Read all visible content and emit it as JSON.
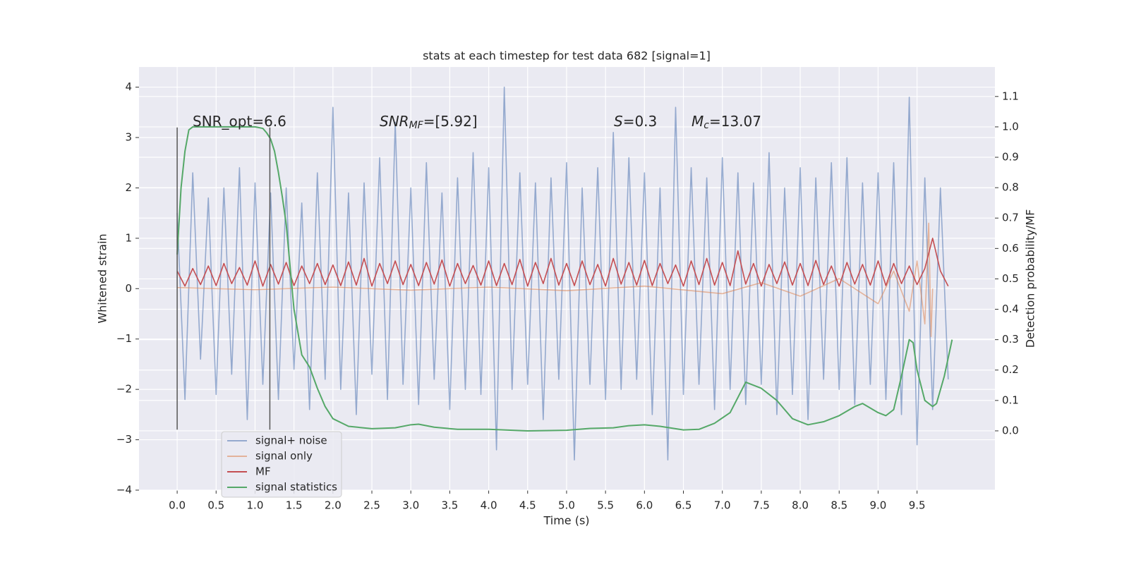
{
  "chart_data": {
    "type": "line",
    "title": "stats at each timestep for test data 682 [signal=1]",
    "xlabel": "Time (s)",
    "ylabel": "Whitened strain",
    "y2label": "Detection probability/MF",
    "xlim": [
      -0.49,
      10.5
    ],
    "ylim": [
      -4,
      4.4
    ],
    "y2lim": [
      -0.195,
      1.197
    ],
    "xticks": [
      {
        "value": 0,
        "label": "0.0"
      },
      0.5,
      {
        "value": 1,
        "label": "1.0"
      },
      1.5,
      {
        "value": 2,
        "label": "2.0"
      },
      2.5,
      {
        "value": 3,
        "label": "3.0"
      },
      3.5,
      {
        "value": 4,
        "label": "4.0"
      },
      4.5,
      {
        "value": 5,
        "label": "5.0"
      },
      5.5,
      {
        "value": 6,
        "label": "6.0"
      },
      6.5,
      {
        "value": 7,
        "label": "7.0"
      },
      7.5,
      {
        "value": 8,
        "label": "8.0"
      },
      8.5,
      {
        "value": 9,
        "label": "9.0"
      },
      9.5
    ],
    "yticks": [
      {
        "value": -4,
        "label": "−4"
      },
      {
        "value": -3,
        "label": "−3"
      },
      {
        "value": -2,
        "label": "−2"
      },
      {
        "value": -1,
        "label": "−1"
      },
      0,
      1,
      2,
      3,
      4
    ],
    "y2ticks": [
      {
        "value": 0,
        "label": "0.0"
      },
      0.1,
      0.2,
      0.3,
      0.4,
      0.5,
      0.6,
      0.7,
      0.8,
      0.9,
      {
        "value": 1,
        "label": "1.0"
      },
      1.1
    ],
    "grid": true,
    "legend": "lower left",
    "annotations": [
      [
        {
          "text": "SNR_opt=6.6"
        }
      ],
      [
        {
          "text": "SNR",
          "italic": true
        },
        {
          "text": "MF",
          "italic": true,
          "sub": true
        },
        {
          "text": "=[5.92]"
        }
      ],
      [
        {
          "text": "S",
          "italic": true
        },
        {
          "text": "=0.3"
        }
      ],
      [
        {
          "text": "M",
          "italic": true
        },
        {
          "text": "c",
          "italic": true,
          "sub": true
        },
        {
          "text": "=13.07"
        }
      ]
    ],
    "vlines": {
      "x": [
        0,
        1.19
      ],
      "ymin": -2.8,
      "ymax": 3.2,
      "color": "#555555"
    },
    "x": [
      0,
      0.1,
      0.2,
      0.3,
      0.4,
      0.5,
      0.6,
      0.7,
      0.8,
      0.9,
      1,
      1.1,
      1.2,
      1.3,
      1.4,
      1.5,
      1.6,
      1.7,
      1.8,
      1.9,
      2,
      2.1,
      2.2,
      2.3,
      2.4,
      2.5,
      2.6,
      2.7,
      2.8,
      2.9,
      3,
      3.1,
      3.2,
      3.3,
      3.4,
      3.5,
      3.6,
      3.7,
      3.8,
      3.9,
      4,
      4.1,
      4.2,
      4.3,
      4.4,
      4.5,
      4.6,
      4.7,
      4.8,
      4.9,
      5,
      5.1,
      5.2,
      5.3,
      5.4,
      5.5,
      5.6,
      5.7,
      5.8,
      5.9,
      6,
      6.1,
      6.2,
      6.3,
      6.4,
      6.5,
      6.6,
      6.7,
      6.8,
      6.9,
      7,
      7.1,
      7.2,
      7.3,
      7.4,
      7.5,
      7.6,
      7.7,
      7.8,
      7.9,
      8,
      8.1,
      8.2,
      8.3,
      8.4,
      8.5,
      8.6,
      8.7,
      8.8,
      8.9,
      9,
      9.1,
      9.2,
      9.3,
      9.4,
      9.5,
      9.6,
      9.7,
      9.8,
      9.9
    ],
    "series": [
      {
        "name": "signal+ noise",
        "color": "#4c72b0",
        "alpha": 0.55,
        "values": [
          1.5,
          -2.2,
          2.3,
          -1.4,
          1.8,
          -2.1,
          2.0,
          -1.7,
          2.4,
          -2.6,
          2.1,
          -1.9,
          1.9,
          -2.2,
          2.0,
          -1.6,
          1.7,
          -2.4,
          2.3,
          -1.8,
          3.6,
          -2.0,
          1.9,
          -2.5,
          2.1,
          -1.7,
          2.6,
          -2.2,
          3.3,
          -1.9,
          2.0,
          -2.3,
          2.5,
          -1.8,
          1.9,
          -2.4,
          2.2,
          -2.0,
          2.7,
          -2.1,
          2.4,
          -3.2,
          4.0,
          -2.0,
          2.3,
          -1.9,
          2.1,
          -2.6,
          2.2,
          -1.8,
          2.5,
          -3.4,
          2.0,
          -1.9,
          2.4,
          -2.2,
          3.1,
          -2.0,
          2.6,
          -1.8,
          2.3,
          -2.5,
          2.0,
          -3.4,
          3.6,
          -2.1,
          2.4,
          -1.9,
          2.2,
          -2.4,
          2.6,
          -2.0,
          2.3,
          -2.3,
          2.1,
          -1.9,
          2.7,
          -2.5,
          2.0,
          -2.1,
          2.4,
          -2.6,
          2.2,
          -1.8,
          2.5,
          -2.0,
          2.6,
          -2.3,
          2.1,
          -1.9,
          2.3,
          -2.2,
          2.5,
          -2.5,
          3.8,
          -3.1,
          2.2,
          -2.4,
          2.0,
          -1.8
        ]
      },
      {
        "name": "signal only",
        "color": "#dd8452",
        "alpha": 0.55,
        "x": [
          0,
          1,
          2,
          3,
          4,
          5,
          6,
          7,
          7.5,
          8,
          8.5,
          9,
          9.2,
          9.4,
          9.5,
          9.6,
          9.65,
          9.68,
          9.7
        ],
        "values": [
          0.02,
          -0.02,
          0.03,
          -0.03,
          0.03,
          -0.04,
          0.05,
          -0.1,
          0.12,
          -0.15,
          0.2,
          -0.3,
          0.35,
          -0.45,
          0.55,
          -0.7,
          1.3,
          -0.95,
          0.0
        ]
      },
      {
        "name": "MF",
        "color": "#c44e52",
        "alpha": 1,
        "values": [
          0.35,
          0.05,
          0.4,
          0.08,
          0.45,
          0.06,
          0.5,
          0.1,
          0.42,
          0.07,
          0.55,
          0.05,
          0.48,
          0.09,
          0.52,
          0.06,
          0.45,
          0.1,
          0.5,
          0.08,
          0.47,
          0.06,
          0.53,
          0.07,
          0.6,
          0.05,
          0.5,
          0.1,
          0.55,
          0.08,
          0.48,
          0.06,
          0.52,
          0.09,
          0.57,
          0.05,
          0.5,
          0.1,
          0.46,
          0.07,
          0.55,
          0.06,
          0.5,
          0.08,
          0.58,
          0.05,
          0.52,
          0.1,
          0.6,
          0.07,
          0.5,
          0.06,
          0.55,
          0.08,
          0.48,
          0.05,
          0.6,
          0.09,
          0.52,
          0.07,
          0.56,
          0.06,
          0.5,
          0.1,
          0.47,
          0.05,
          0.55,
          0.08,
          0.6,
          0.07,
          0.52,
          0.06,
          0.75,
          0.09,
          0.5,
          0.05,
          0.48,
          0.1,
          0.53,
          0.07,
          0.5,
          0.06,
          0.56,
          0.08,
          0.45,
          0.05,
          0.52,
          0.09,
          0.48,
          0.07,
          0.55,
          0.06,
          0.5,
          0.1,
          0.45,
          0.08,
          0.4,
          1.0,
          0.35,
          0.05
        ]
      },
      {
        "name": "signal statistics",
        "color": "#55a868",
        "alpha": 1,
        "axis": "y2",
        "x": [
          0,
          0.05,
          0.1,
          0.15,
          0.2,
          0.4,
          0.6,
          0.8,
          1.0,
          1.1,
          1.15,
          1.2,
          1.25,
          1.3,
          1.35,
          1.4,
          1.5,
          1.6,
          1.7,
          1.8,
          1.9,
          2.0,
          2.2,
          2.5,
          2.8,
          3.0,
          3.1,
          3.3,
          3.6,
          4.0,
          4.5,
          5.0,
          5.3,
          5.6,
          5.8,
          6.0,
          6.2,
          6.5,
          6.7,
          6.9,
          7.1,
          7.2,
          7.3,
          7.5,
          7.7,
          7.9,
          8.1,
          8.3,
          8.5,
          8.7,
          8.8,
          9.0,
          9.1,
          9.2,
          9.3,
          9.4,
          9.45,
          9.5,
          9.6,
          9.7,
          9.75,
          9.85,
          9.95
        ],
        "values": [
          0.58,
          0.8,
          0.92,
          0.99,
          1.0,
          1.0,
          1.0,
          1.0,
          1.0,
          0.995,
          0.98,
          0.96,
          0.92,
          0.85,
          0.77,
          0.68,
          0.4,
          0.25,
          0.21,
          0.14,
          0.08,
          0.04,
          0.015,
          0.007,
          0.01,
          0.02,
          0.022,
          0.012,
          0.005,
          0.005,
          0.0,
          0.002,
          0.008,
          0.01,
          0.017,
          0.02,
          0.015,
          0.003,
          0.005,
          0.025,
          0.06,
          0.11,
          0.16,
          0.14,
          0.1,
          0.04,
          0.02,
          0.03,
          0.05,
          0.08,
          0.09,
          0.06,
          0.05,
          0.07,
          0.18,
          0.3,
          0.29,
          0.2,
          0.1,
          0.08,
          0.09,
          0.18,
          0.3
        ]
      }
    ]
  }
}
